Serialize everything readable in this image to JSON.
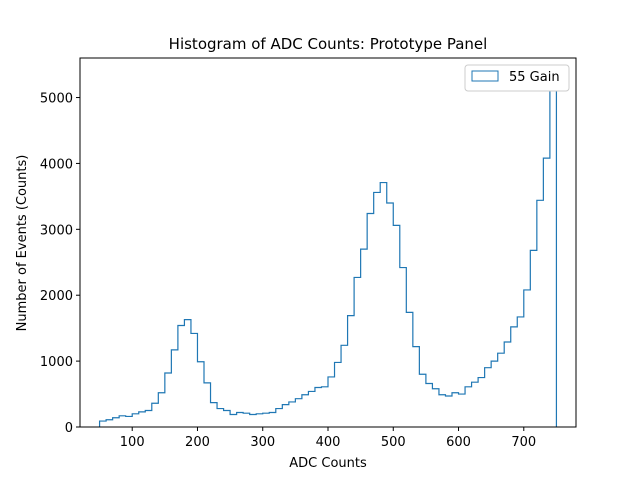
{
  "chart_data": {
    "type": "histogram",
    "title": "Histogram of ADC Counts: Prototype Panel",
    "xlabel": "ADC Counts",
    "ylabel": "Number of Events (Counts)",
    "xlim": [
      20,
      780
    ],
    "ylim": [
      0,
      5600
    ],
    "xticks": [
      100,
      200,
      300,
      400,
      500,
      600,
      700
    ],
    "yticks": [
      0,
      1000,
      2000,
      3000,
      4000,
      5000
    ],
    "legend_position": "top-right",
    "grid": false,
    "series": [
      {
        "name": "55 Gain",
        "color": "#1f77b4",
        "bin_edges": [
          50,
          60,
          70,
          80,
          90,
          100,
          110,
          120,
          130,
          140,
          150,
          160,
          170,
          180,
          190,
          200,
          210,
          220,
          230,
          240,
          250,
          260,
          270,
          280,
          290,
          300,
          310,
          320,
          330,
          340,
          350,
          360,
          370,
          380,
          390,
          400,
          410,
          420,
          430,
          440,
          450,
          460,
          470,
          480,
          490,
          500,
          510,
          520,
          530,
          540,
          550,
          560,
          570,
          580,
          590,
          600,
          610,
          620,
          630,
          640,
          650,
          660,
          670,
          680,
          690,
          700,
          710,
          720,
          730,
          740,
          750
        ],
        "values": [
          90,
          110,
          140,
          170,
          160,
          200,
          230,
          250,
          360,
          520,
          820,
          1170,
          1540,
          1630,
          1420,
          990,
          670,
          370,
          280,
          250,
          190,
          220,
          210,
          190,
          200,
          210,
          220,
          280,
          340,
          380,
          430,
          490,
          540,
          600,
          610,
          760,
          980,
          1240,
          1690,
          2270,
          2700,
          3240,
          3560,
          3710,
          3400,
          3060,
          2420,
          1740,
          1220,
          800,
          660,
          580,
          490,
          470,
          520,
          500,
          610,
          680,
          750,
          900,
          1000,
          1120,
          1290,
          1520,
          1670,
          2080,
          2680,
          3440,
          4080,
          5320
        ]
      }
    ]
  }
}
